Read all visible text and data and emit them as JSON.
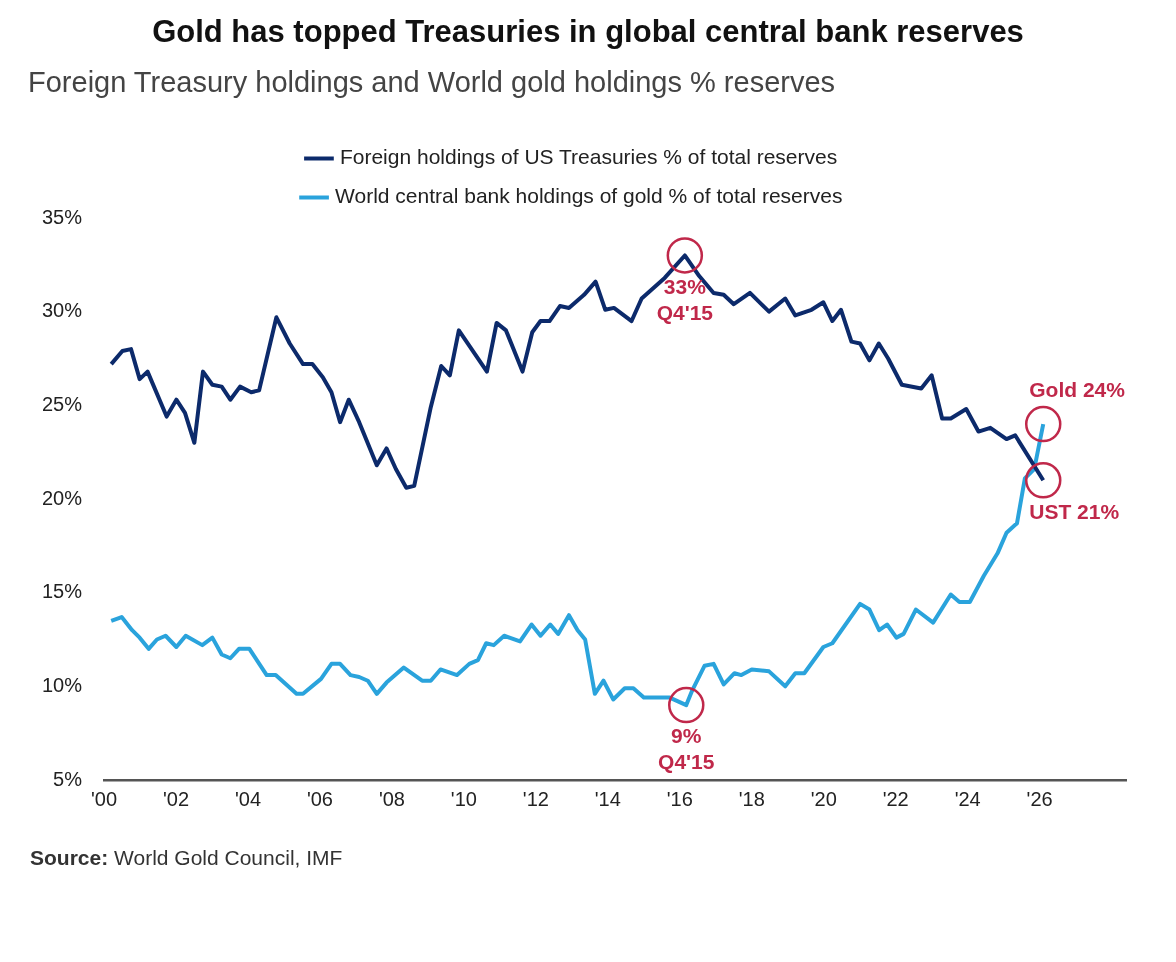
{
  "chart_data": {
    "type": "line",
    "title": "Gold has topped Treasuries in global central bank reserves",
    "subtitle": "Foreign Treasury holdings and World gold holdings % reserves",
    "xlim": [
      2000,
      2028.4
    ],
    "xticks": [
      {
        "value": 2000,
        "label": "'00"
      },
      {
        "value": 2002,
        "label": "'02"
      },
      {
        "value": 2004,
        "label": "'04"
      },
      {
        "value": 2006,
        "label": "'06"
      },
      {
        "value": 2008,
        "label": "'08"
      },
      {
        "value": 2010,
        "label": "'10"
      },
      {
        "value": 2012,
        "label": "'12"
      },
      {
        "value": 2014,
        "label": "'14"
      },
      {
        "value": 2016,
        "label": "'16"
      },
      {
        "value": 2018,
        "label": "'18"
      },
      {
        "value": 2020,
        "label": "'20"
      },
      {
        "value": 2022,
        "label": "'22"
      },
      {
        "value": 2024,
        "label": "'24"
      },
      {
        "value": 2026,
        "label": "'26"
      }
    ],
    "ylim": [
      5,
      35
    ],
    "yticks": [
      {
        "value": 5,
        "label": "5%"
      },
      {
        "value": 10,
        "label": "10%"
      },
      {
        "value": 15,
        "label": "15%"
      },
      {
        "value": 20,
        "label": "20%"
      },
      {
        "value": 25,
        "label": "25%"
      },
      {
        "value": 30,
        "label": "30%"
      },
      {
        "value": 35,
        "label": "35%"
      }
    ],
    "grid": false,
    "legend": "top",
    "series": [
      {
        "name": "Foreign holdings of US Treasuries % of total reserves",
        "color": "#0c2a6b",
        "x": [
          2000.2,
          2000.51,
          2000.75,
          2000.99,
          2001.21,
          2001.74,
          2002.01,
          2002.25,
          2002.51,
          2002.75,
          2003.01,
          2003.27,
          2003.51,
          2003.78,
          2004.09,
          2004.31,
          2004.79,
          2005.16,
          2005.53,
          2005.79,
          2006.08,
          2006.32,
          2006.56,
          2006.8,
          2007.09,
          2007.58,
          2007.85,
          2008.11,
          2008.4,
          2008.62,
          2009.08,
          2009.37,
          2009.61,
          2009.86,
          2010.64,
          2010.91,
          2011.17,
          2011.63,
          2011.9,
          2012.13,
          2012.38,
          2012.67,
          2012.92,
          2013.34,
          2013.66,
          2013.93,
          2014.17,
          2014.66,
          2014.94,
          2015.58,
          2016.14,
          2016.54,
          2016.94,
          2017.22,
          2017.5,
          2017.95,
          2018.48,
          2018.93,
          2019.21,
          2019.66,
          2019.99,
          2020.24,
          2020.48,
          2020.77,
          2021.01,
          2021.27,
          2021.53,
          2021.79,
          2022.17,
          2022.71,
          2023.0,
          2023.29,
          2023.53,
          2023.96,
          2024.3,
          2024.63,
          2025.08,
          2025.32,
          2026.1
        ],
        "values": [
          27.2,
          27.9,
          28.0,
          26.4,
          26.8,
          24.4,
          25.3,
          24.6,
          23.0,
          26.8,
          26.1,
          26.0,
          25.3,
          26.0,
          25.7,
          25.8,
          29.7,
          28.3,
          27.2,
          27.2,
          26.5,
          25.7,
          24.1,
          25.3,
          24.1,
          21.8,
          22.7,
          21.6,
          20.6,
          20.7,
          24.9,
          27.1,
          26.6,
          29.0,
          26.8,
          29.4,
          29.0,
          26.8,
          28.9,
          29.5,
          29.5,
          30.3,
          30.2,
          30.9,
          31.6,
          30.1,
          30.2,
          29.5,
          30.7,
          31.8,
          33.0,
          31.9,
          31.0,
          30.9,
          30.4,
          31.0,
          30.0,
          30.7,
          29.8,
          30.1,
          30.5,
          29.5,
          30.1,
          28.4,
          28.3,
          27.4,
          28.3,
          27.5,
          26.1,
          25.9,
          26.6,
          24.3,
          24.3,
          24.8,
          23.6,
          23.8,
          23.2,
          23.4,
          21.0
        ]
      },
      {
        "name": "World central bank holdings of gold % of total reserves",
        "color": "#2aa3dc",
        "x": [
          2000.2,
          2000.49,
          2000.78,
          2000.99,
          2001.24,
          2001.47,
          2001.71,
          2002.01,
          2002.27,
          2002.73,
          2003.01,
          2003.27,
          2003.51,
          2003.75,
          2004.04,
          2004.52,
          2004.77,
          2005.35,
          2005.53,
          2006.03,
          2006.32,
          2006.56,
          2006.85,
          2007.09,
          2007.33,
          2007.58,
          2007.85,
          2008.33,
          2008.84,
          2009.08,
          2009.35,
          2009.81,
          2010.15,
          2010.39,
          2010.62,
          2010.83,
          2011.12,
          2011.56,
          2011.88,
          2012.13,
          2012.4,
          2012.62,
          2012.92,
          2013.16,
          2013.37,
          2013.64,
          2013.88,
          2014.15,
          2014.47,
          2014.71,
          2015.0,
          2015.38,
          2015.72,
          2016.18,
          2016.35,
          2016.69,
          2016.94,
          2017.22,
          2017.52,
          2017.71,
          2018.0,
          2018.48,
          2018.93,
          2019.21,
          2019.46,
          2019.99,
          2020.24,
          2021.01,
          2021.27,
          2021.54,
          2021.76,
          2022.02,
          2022.22,
          2022.56,
          2023.04,
          2023.53,
          2023.77,
          2024.06,
          2024.45,
          2024.83,
          2025.08,
          2025.37,
          2025.59,
          2025.85,
          2026.1
        ],
        "values": [
          13.5,
          13.7,
          13.0,
          12.6,
          12.0,
          12.5,
          12.7,
          12.1,
          12.7,
          12.2,
          12.6,
          11.7,
          11.5,
          12.0,
          12.0,
          10.6,
          10.6,
          9.6,
          9.6,
          10.4,
          11.2,
          11.2,
          10.6,
          10.5,
          10.3,
          9.6,
          10.2,
          11.0,
          10.3,
          10.3,
          10.9,
          10.6,
          11.2,
          11.4,
          12.3,
          12.2,
          12.7,
          12.4,
          13.3,
          12.7,
          13.3,
          12.8,
          13.8,
          13.0,
          12.5,
          9.6,
          10.3,
          9.3,
          9.9,
          9.9,
          9.4,
          9.4,
          9.4,
          9.0,
          9.8,
          11.1,
          11.2,
          10.1,
          10.7,
          10.6,
          10.9,
          10.8,
          10.0,
          10.7,
          10.7,
          12.1,
          12.3,
          14.4,
          14.1,
          13.0,
          13.3,
          12.6,
          12.8,
          14.1,
          13.4,
          14.9,
          14.5,
          14.5,
          15.9,
          17.1,
          18.2,
          18.7,
          21.1,
          21.6,
          24.0
        ]
      }
    ],
    "annotations": [
      {
        "text": "33%\nQ4'15",
        "x": 2016.14,
        "y": 33
      },
      {
        "text": "9%\nQ4'15",
        "x": 2016.18,
        "y": 9
      },
      {
        "text": "Gold 24%",
        "x": 2026.1,
        "y": 24
      },
      {
        "text": "UST 21%",
        "x": 2026.1,
        "y": 21
      },
      "Source: World Gold Council, IMF"
    ]
  }
}
